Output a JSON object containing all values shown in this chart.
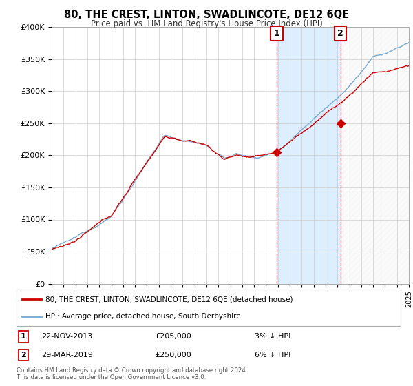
{
  "title": "80, THE CREST, LINTON, SWADLINCOTE, DE12 6QE",
  "subtitle": "Price paid vs. HM Land Registry's House Price Index (HPI)",
  "ylim": [
    0,
    400000
  ],
  "yticks": [
    0,
    50000,
    100000,
    150000,
    200000,
    250000,
    300000,
    350000,
    400000
  ],
  "ytick_labels": [
    "£0",
    "£50K",
    "£100K",
    "£150K",
    "£200K",
    "£250K",
    "£300K",
    "£350K",
    "£400K"
  ],
  "background_color": "#ffffff",
  "plot_bg_color": "#ffffff",
  "grid_color": "#cccccc",
  "red_line_color": "#cc0000",
  "blue_line_color": "#7aabcf",
  "shade_color": "#ddeeff",
  "marker1_x": 2013.9,
  "marker1_price": 205000,
  "marker1_label": "1",
  "marker1_date": "22-NOV-2013",
  "marker1_pct": "3% ↓ HPI",
  "marker2_x": 2019.25,
  "marker2_price": 250000,
  "marker2_label": "2",
  "marker2_date": "29-MAR-2019",
  "marker2_pct": "6% ↓ HPI",
  "legend_line1": "80, THE CREST, LINTON, SWADLINCOTE, DE12 6QE (detached house)",
  "legend_line2": "HPI: Average price, detached house, South Derbyshire",
  "footer1": "Contains HM Land Registry data © Crown copyright and database right 2024.",
  "footer2": "This data is licensed under the Open Government Licence v3.0.",
  "xlim_start": 1995,
  "xlim_end": 2025
}
